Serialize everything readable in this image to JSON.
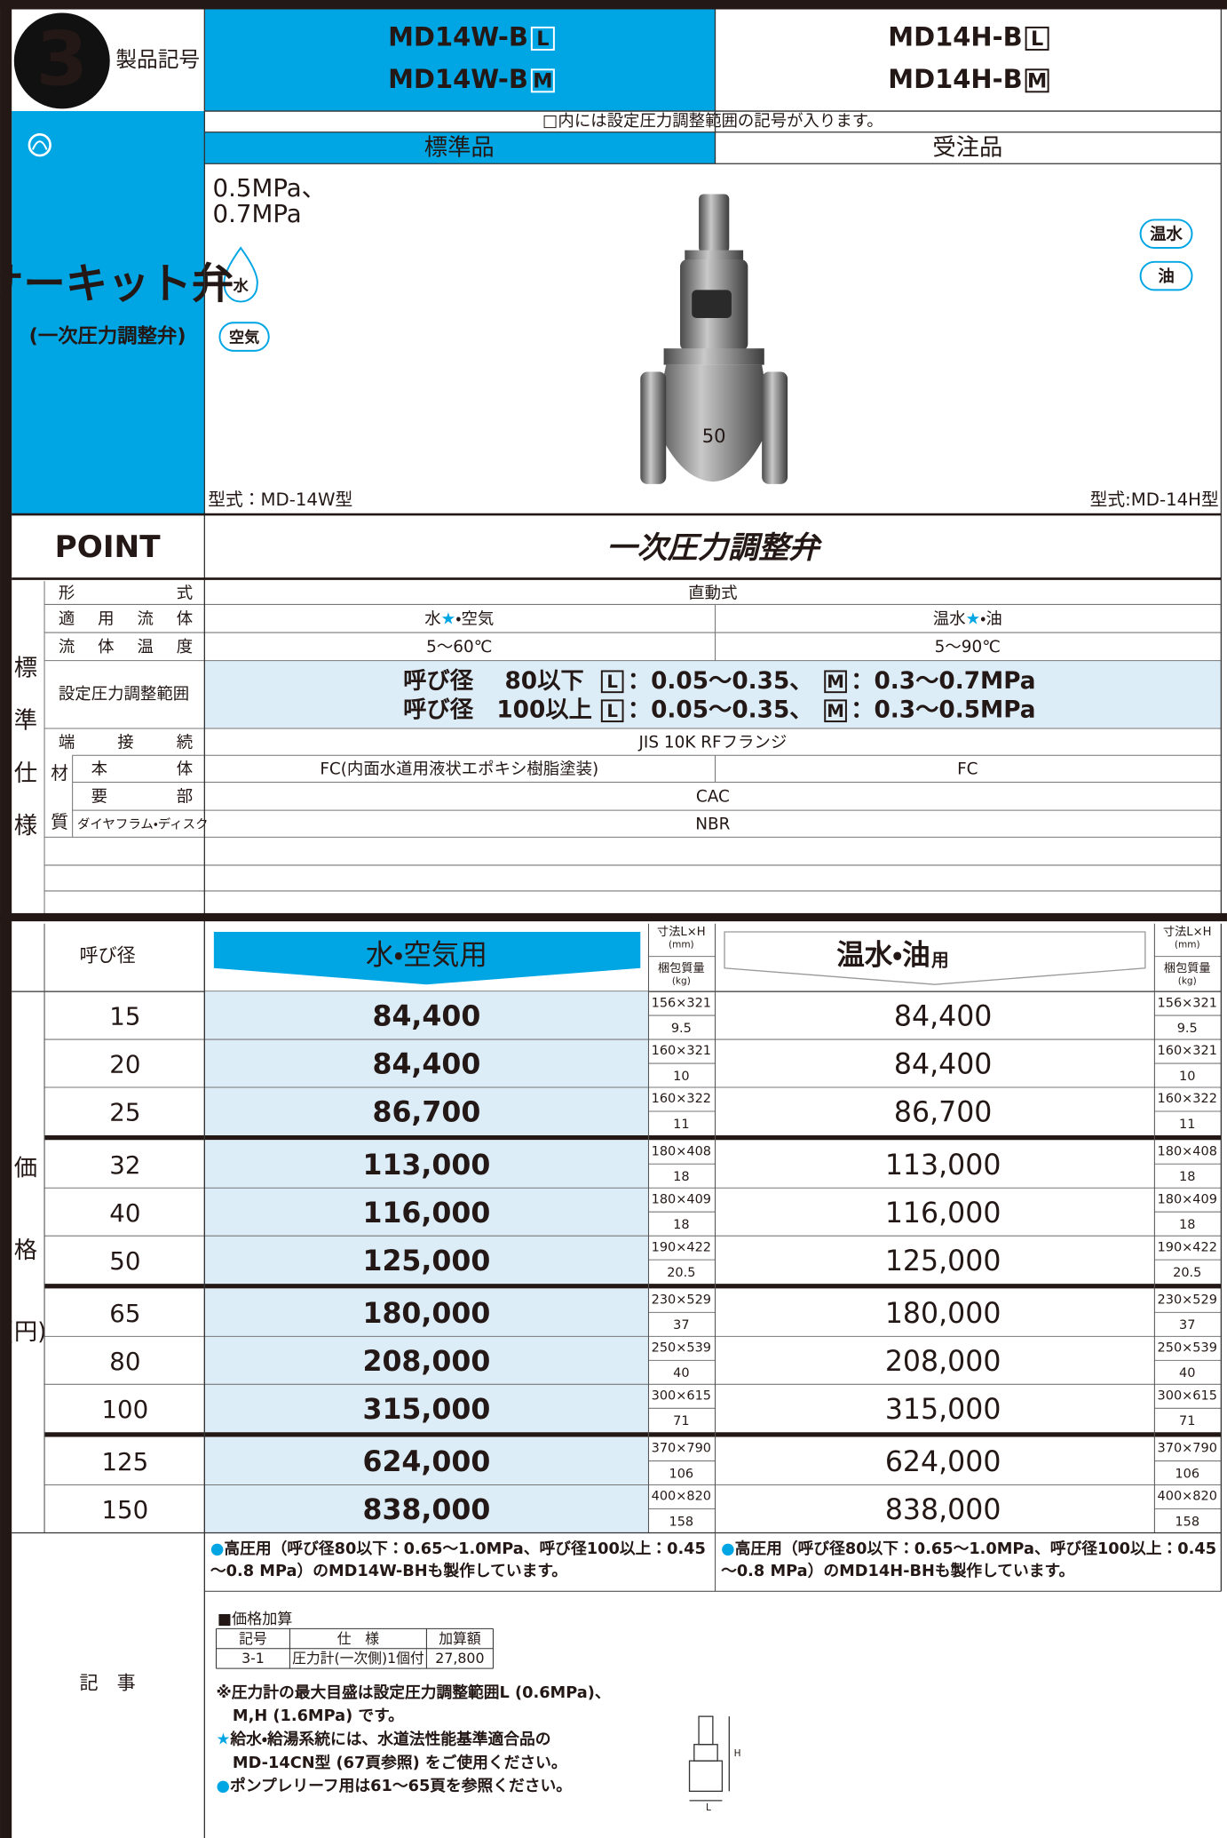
{
  "header": {
    "badge": "3",
    "symbol_label": "製品記号",
    "models_standard": [
      {
        "base": "MD14W-B",
        "suffix": "L"
      },
      {
        "base": "MD14W-B",
        "suffix": "M"
      }
    ],
    "models_order": [
      {
        "base": "MD14H-B",
        "suffix": "L"
      },
      {
        "base": "MD14H-B",
        "suffix": "M"
      }
    ],
    "note": "□内には設定圧力調整範囲の記号が入ります。",
    "standard_label": "標準品",
    "order_label": "受注品"
  },
  "side": {
    "title": "サーキット弁",
    "subtitle": "(一次圧力調整弁)"
  },
  "product": {
    "pressures": [
      "0.5MPa、",
      "0.7MPa"
    ],
    "fluids_standard": [
      "水",
      "空気"
    ],
    "fluids_order": [
      "温水",
      "油"
    ],
    "model_standard": "型式：MD-14W型",
    "model_order": "型式:MD-14H型",
    "valve_mark": "50"
  },
  "point": {
    "label": "POINT",
    "text": "一次圧力調整弁"
  },
  "spec": {
    "group_label": [
      "標",
      "準",
      "仕",
      "様"
    ],
    "material_label": [
      "材",
      "質"
    ],
    "type": {
      "label": "形　　　式",
      "value": "直動式"
    },
    "fluid": {
      "label": "適用流体",
      "standard": "水★・空気",
      "order": "温水★・油"
    },
    "temperature": {
      "label": "流体温度",
      "standard": "5〜60℃",
      "order": "5〜90℃"
    },
    "pressure": {
      "label": "設定圧力調整範囲",
      "rows": [
        {
          "size": "呼び径　 80以下",
          "l": "L",
          "l_range": "：0.05〜0.35、",
          "m": "M",
          "m_range": "：0.3〜0.7MPa"
        },
        {
          "size": "呼び径　100以上",
          "l": "L",
          "l_range": "：0.05〜0.35、",
          "m": "M",
          "m_range": "：0.3〜0.5MPa"
        }
      ]
    },
    "connection": {
      "label": "端接続",
      "value": "JIS 10K RFフランジ"
    },
    "body": {
      "label": "本体",
      "standard": "FC(内面水道用液状エポキシ樹脂塗装)",
      "order": "FC"
    },
    "main_parts": {
      "label": "要部",
      "value": "CAC"
    },
    "diaphragm": {
      "label": "ダイヤフラム・ディスク",
      "value": "NBR"
    }
  },
  "price": {
    "group_label": [
      "価",
      "格",
      "(円)"
    ],
    "size_label": "呼び径",
    "standard_label": "水・空気用",
    "order_label": "温水・油",
    "order_suffix": "用",
    "dim_label": "寸法L×H",
    "dim_unit": "(mm)",
    "weight_label": "梱包質量",
    "weight_unit": "(kg)",
    "groups": [
      [
        [
          "15",
          "84,400",
          "156×321",
          "9.5",
          "84,400",
          "156×321",
          "9.5"
        ],
        [
          "20",
          "84,400",
          "160×321",
          "10",
          "84,400",
          "160×321",
          "10"
        ],
        [
          "25",
          "86,700",
          "160×322",
          "11",
          "86,700",
          "160×322",
          "11"
        ]
      ],
      [
        [
          "32",
          "113,000",
          "180×408",
          "18",
          "113,000",
          "180×408",
          "18"
        ],
        [
          "40",
          "116,000",
          "180×409",
          "18",
          "116,000",
          "180×409",
          "18"
        ],
        [
          "50",
          "125,000",
          "190×422",
          "20.5",
          "125,000",
          "190×422",
          "20.5"
        ]
      ],
      [
        [
          "65",
          "180,000",
          "230×529",
          "37",
          "180,000",
          "230×529",
          "37"
        ],
        [
          "80",
          "208,000",
          "250×539",
          "40",
          "208,000",
          "250×539",
          "40"
        ],
        [
          "100",
          "315,000",
          "300×615",
          "71",
          "315,000",
          "300×615",
          "71"
        ]
      ],
      [
        [
          "125",
          "624,000",
          "370×790",
          "106",
          "624,000",
          "370×790",
          "106"
        ],
        [
          "150",
          "838,000",
          "400×820",
          "158",
          "838,000",
          "400×820",
          "158"
        ]
      ]
    ]
  },
  "notes": {
    "label": "記　事",
    "standard": [
      "●高圧用（呼び径80以下：0.65〜1.0MPa、呼び径100以上：0.45",
      "〜0.8 MPa）のMD14W-BHも製作しています。"
    ],
    "order": [
      "●高圧用（呼び径80以下：0.65〜1.0MPa、呼び径100以上：0.45",
      "〜0.8 MPa）のMD14H-BHも製作しています。"
    ],
    "addition": {
      "title": "■価格加算",
      "headers": [
        "記号",
        "仕　様",
        "加算額"
      ],
      "row": [
        "3-1",
        "圧力計(一次側)1個付",
        "27,800"
      ]
    },
    "remarks": [
      "※圧力計の最大目盛は設定圧力調整範囲L (0.6MPa)、",
      "M,H (1.6MPa) です。",
      "★給水・給湯系統には、水道法性能基準適合品の",
      "MD-14CN型 (67頁参照) をご使用ください。",
      "●ポンプレリーフ用は61〜65頁を参照ください。"
    ],
    "diagram_labels": [
      "H",
      "L"
    ]
  }
}
